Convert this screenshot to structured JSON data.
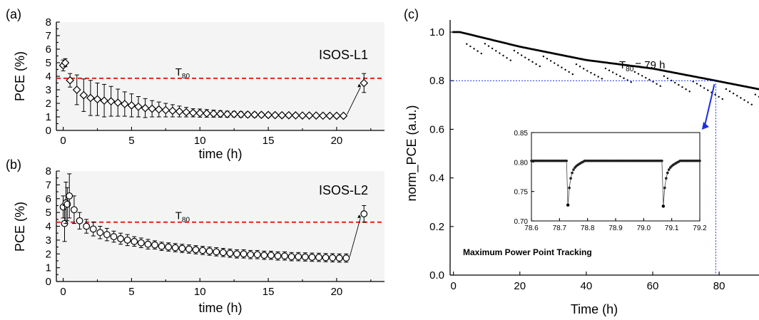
{
  "chart_data": [
    {
      "panel": "(a)",
      "type": "scatter",
      "annotation": "ISOS-L1",
      "xlabel": "time (h)",
      "ylabel": "PCE (%)",
      "xlim": [
        -0.5,
        23.5
      ],
      "ylim": [
        0,
        8
      ],
      "xticks": [
        "0",
        "5",
        "10",
        "15",
        "20"
      ],
      "yticks": [
        "0",
        "1",
        "2",
        "3",
        "4",
        "5",
        "6",
        "7",
        "8"
      ],
      "marker": "diamond",
      "reference_line": {
        "label_base": "T",
        "label_sub": "80",
        "y": 3.85,
        "color": "#e8211b"
      },
      "series": [
        {
          "x": [
            0,
            0.15,
            0.5,
            1.0,
            1.5,
            2.0,
            2.5,
            3.0,
            3.5,
            4.0,
            4.5,
            5.0,
            5.5,
            6.0,
            6.5,
            7.0,
            7.5,
            8.0,
            8.5,
            9.0,
            9.5,
            10.0,
            10.5,
            11.0,
            11.5,
            12.0,
            12.5,
            13.0,
            13.5,
            14.0,
            14.5,
            15.0,
            15.5,
            16.0,
            16.5,
            17.0,
            17.5,
            18.0,
            18.5,
            19.0,
            19.5,
            20.0,
            20.5,
            22.0
          ],
          "y": [
            4.8,
            5.0,
            3.7,
            3.0,
            2.6,
            2.4,
            2.3,
            2.2,
            2.15,
            2.05,
            1.95,
            1.85,
            1.75,
            1.65,
            1.6,
            1.55,
            1.5,
            1.45,
            1.4,
            1.35,
            1.3,
            1.28,
            1.26,
            1.24,
            1.22,
            1.2,
            1.2,
            1.18,
            1.17,
            1.16,
            1.15,
            1.14,
            1.13,
            1.12,
            1.12,
            1.11,
            1.1,
            1.1,
            1.1,
            1.09,
            1.08,
            1.08,
            1.08,
            3.5
          ],
          "err": [
            0.4,
            0.3,
            0.5,
            1.1,
            1.2,
            1.3,
            1.2,
            1.2,
            1.1,
            1.0,
            0.9,
            0.85,
            0.75,
            0.7,
            0.6,
            0.55,
            0.5,
            0.45,
            0.4,
            0.35,
            0.3,
            0.3,
            0.28,
            0.26,
            0.24,
            0.22,
            0.2,
            0.2,
            0.18,
            0.18,
            0.16,
            0.16,
            0.15,
            0.15,
            0.14,
            0.14,
            0.13,
            0.13,
            0.12,
            0.12,
            0.12,
            0.12,
            0.12,
            0.7
          ]
        }
      ]
    },
    {
      "panel": "(b)",
      "type": "scatter",
      "annotation": "ISOS-L2",
      "xlabel": "time (h)",
      "ylabel": "PCE (%)",
      "xlim": [
        -0.5,
        23.5
      ],
      "ylim": [
        0,
        8
      ],
      "xticks": [
        "0",
        "5",
        "10",
        "15",
        "20"
      ],
      "yticks": [
        "0",
        "1",
        "2",
        "3",
        "4",
        "5",
        "6",
        "7",
        "8"
      ],
      "marker": "circle",
      "reference_line": {
        "label_base": "T",
        "label_sub": "80",
        "y": 4.3,
        "color": "#e8211b"
      },
      "series": [
        {
          "x": [
            0,
            0.1,
            0.2,
            0.3,
            0.45,
            0.8,
            1.2,
            1.7,
            2.2,
            2.7,
            3.2,
            3.7,
            4.2,
            4.7,
            5.2,
            5.7,
            6.2,
            6.7,
            7.2,
            7.7,
            8.2,
            8.7,
            9.2,
            9.7,
            10.2,
            10.7,
            11.2,
            11.7,
            12.2,
            12.7,
            13.2,
            13.7,
            14.2,
            14.7,
            15.2,
            15.7,
            16.2,
            16.7,
            17.2,
            17.7,
            18.2,
            18.7,
            19.2,
            19.7,
            20.2,
            20.7,
            22.0
          ],
          "y": [
            5.4,
            4.2,
            5.7,
            5.6,
            6.2,
            5.2,
            4.4,
            4.0,
            3.8,
            3.55,
            3.4,
            3.25,
            3.1,
            3.0,
            2.9,
            2.8,
            2.7,
            2.65,
            2.55,
            2.5,
            2.45,
            2.4,
            2.35,
            2.3,
            2.25,
            2.2,
            2.15,
            2.1,
            2.05,
            2.0,
            2.0,
            1.95,
            1.95,
            1.9,
            1.9,
            1.85,
            1.85,
            1.8,
            1.8,
            1.78,
            1.76,
            1.75,
            1.73,
            1.72,
            1.7,
            1.7,
            4.9
          ],
          "err": [
            0.8,
            1.3,
            1.5,
            1.2,
            1.6,
            1.0,
            0.6,
            0.5,
            0.5,
            0.45,
            0.45,
            0.4,
            0.4,
            0.4,
            0.35,
            0.35,
            0.35,
            0.3,
            0.3,
            0.3,
            0.3,
            0.3,
            0.3,
            0.3,
            0.3,
            0.3,
            0.3,
            0.3,
            0.3,
            0.3,
            0.3,
            0.3,
            0.3,
            0.3,
            0.3,
            0.3,
            0.3,
            0.3,
            0.3,
            0.3,
            0.3,
            0.3,
            0.3,
            0.3,
            0.3,
            0.3,
            0.6
          ]
        }
      ]
    },
    {
      "panel": "(c)",
      "type": "scatter",
      "xlabel": "Time (h)",
      "ylabel": "norm_PCE (a.u.)",
      "xlim": [
        -1,
        92
      ],
      "ylim": [
        0,
        1.05
      ],
      "xticks": [
        "0",
        "20",
        "40",
        "60",
        "80"
      ],
      "yticks": [
        "0.0",
        "0.2",
        "0.4",
        "0.6",
        "0.8",
        "1.0"
      ],
      "annotation_base": "T",
      "annotation_sub": "80",
      "annotation_tail": "= 79 h",
      "t80_time": 79,
      "t80_value": 0.8,
      "guide_color": "#1a2ee6",
      "trend_x": [
        0,
        2,
        5,
        20,
        40,
        60,
        79,
        92
      ],
      "trend_y": [
        1.0,
        1.0,
        0.99,
        0.94,
        0.885,
        0.85,
        0.8,
        0.765
      ],
      "inset_caption": "Maximum Power Point Tracking",
      "inset": {
        "type": "scatter",
        "xlim": [
          78.6,
          79.2
        ],
        "ylim": [
          0.7,
          0.85
        ],
        "xticks": [
          "78.6",
          "78.7",
          "78.8",
          "78.9",
          "79.0",
          "79.1",
          "79.2"
        ],
        "yticks": [
          "0.70",
          "0.75",
          "0.80",
          "0.85"
        ],
        "baseline": 0.802,
        "dips": [
          {
            "x": 78.73,
            "y": 0.727
          },
          {
            "x": 79.07,
            "y": 0.725
          }
        ]
      }
    }
  ]
}
